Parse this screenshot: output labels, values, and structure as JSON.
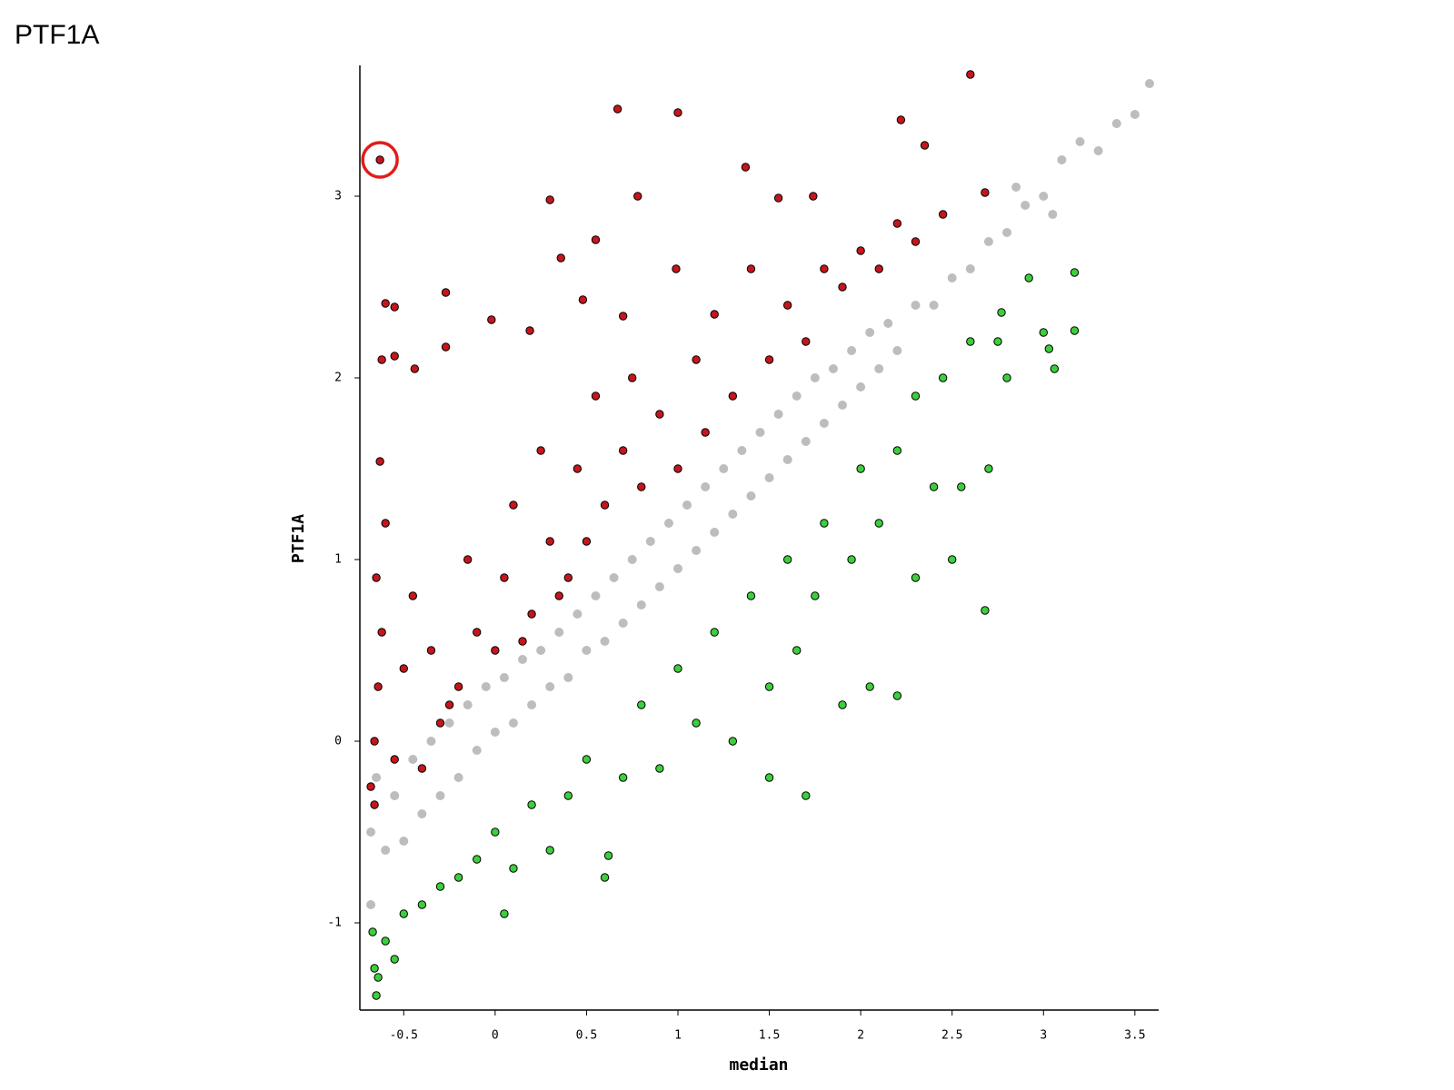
{
  "chart_data": {
    "type": "scatter",
    "title": "PTF1A",
    "xlabel": "median",
    "ylabel": "PTF1A",
    "xlim": [
      -0.74,
      3.63
    ],
    "ylim": [
      -1.48,
      3.72
    ],
    "xticks": [
      -0.5,
      0,
      0.5,
      1,
      1.5,
      2,
      2.5,
      3,
      3.5
    ],
    "yticks": [
      -1,
      0,
      1,
      2,
      3
    ],
    "series": [
      {
        "color": "#bdbdbd",
        "x": [
          -0.68,
          -0.68,
          -0.65,
          -0.6,
          -0.55,
          -0.5,
          -0.45,
          -0.4,
          -0.35,
          -0.3,
          -0.25,
          -0.2,
          -0.15,
          -0.1,
          -0.05,
          0,
          0.05,
          0.1,
          0.15,
          0.2,
          0.25,
          0.3,
          0.35,
          0.4,
          0.45,
          0.5,
          0.55,
          0.6,
          0.65,
          0.7,
          0.75,
          0.8,
          0.85,
          0.9,
          0.95,
          1.0,
          1.05,
          1.1,
          1.15,
          1.2,
          1.25,
          1.3,
          1.35,
          1.4,
          1.45,
          1.5,
          1.55,
          1.6,
          1.65,
          1.7,
          1.75,
          1.8,
          1.85,
          1.9,
          1.95,
          2.0,
          2.05,
          2.1,
          2.15,
          2.2,
          2.3,
          2.4,
          2.5,
          2.6,
          2.7,
          2.8,
          2.9,
          3.0,
          3.1,
          3.2,
          3.3,
          3.4,
          3.5,
          3.58,
          2.85,
          3.05
        ],
        "values": [
          -0.9,
          -0.5,
          -0.2,
          -0.6,
          -0.3,
          -0.55,
          -0.1,
          -0.4,
          0.0,
          -0.3,
          0.1,
          -0.2,
          0.2,
          -0.05,
          0.3,
          0.05,
          0.35,
          0.1,
          0.45,
          0.2,
          0.5,
          0.3,
          0.6,
          0.35,
          0.7,
          0.5,
          0.8,
          0.55,
          0.9,
          0.65,
          1.0,
          0.75,
          1.1,
          0.85,
          1.2,
          0.95,
          1.3,
          1.05,
          1.4,
          1.15,
          1.5,
          1.25,
          1.6,
          1.35,
          1.7,
          1.45,
          1.8,
          1.55,
          1.9,
          1.65,
          2.0,
          1.75,
          2.05,
          1.85,
          2.15,
          1.95,
          2.25,
          2.05,
          2.3,
          2.15,
          2.4,
          2.4,
          2.55,
          2.6,
          2.75,
          2.8,
          2.95,
          3.0,
          3.2,
          3.3,
          3.25,
          3.4,
          3.45,
          3.62,
          3.05,
          2.9
        ]
      },
      {
        "color": "#c4161c",
        "x": [
          -0.63,
          0.67,
          1.0,
          2.6,
          2.22,
          2.35,
          1.37,
          0.3,
          0.78,
          1.55,
          1.74,
          0.55,
          0.36,
          0.99,
          -0.6,
          -0.55,
          -0.27,
          0.48,
          0.7,
          -0.02,
          0.19,
          -0.62,
          -0.44,
          -0.55,
          -0.27,
          -0.63,
          -0.6,
          -0.65,
          -0.62,
          -0.64,
          -0.66,
          -0.68,
          -0.66,
          -0.55,
          -0.5,
          -0.45,
          -0.35,
          -0.3,
          -0.2,
          -0.1,
          -0.15,
          0,
          0.05,
          0.1,
          0.2,
          0.25,
          0.3,
          0.4,
          0.45,
          0.5,
          0.55,
          0.6,
          0.7,
          0.75,
          0.8,
          0.9,
          1.0,
          1.1,
          1.15,
          1.2,
          1.3,
          1.4,
          1.5,
          1.6,
          1.7,
          1.8,
          1.9,
          2.0,
          2.1,
          2.2,
          2.3,
          2.45,
          2.68,
          -0.4,
          -0.25,
          0.15,
          0.35
        ],
        "values": [
          3.2,
          3.48,
          3.46,
          3.67,
          3.42,
          3.28,
          3.16,
          2.98,
          3.0,
          2.99,
          3.0,
          2.76,
          2.66,
          2.6,
          2.41,
          2.39,
          2.47,
          2.43,
          2.34,
          2.32,
          2.26,
          2.1,
          2.05,
          2.12,
          2.17,
          1.54,
          1.2,
          0.9,
          0.6,
          0.3,
          0.0,
          -0.25,
          -0.35,
          -0.1,
          0.4,
          0.8,
          0.5,
          0.1,
          0.3,
          0.6,
          1.0,
          0.5,
          0.9,
          1.3,
          0.7,
          1.6,
          1.1,
          0.9,
          1.5,
          1.1,
          1.9,
          1.3,
          1.6,
          2.0,
          1.4,
          1.8,
          1.5,
          2.1,
          1.7,
          2.35,
          1.9,
          2.6,
          2.1,
          2.4,
          2.2,
          2.6,
          2.5,
          2.7,
          2.6,
          2.85,
          2.75,
          2.9,
          3.02,
          -0.15,
          0.2,
          0.55,
          0.8
        ]
      },
      {
        "color": "#3ccf3c",
        "x": [
          -0.67,
          -0.66,
          -0.65,
          -0.64,
          -0.6,
          -0.55,
          -0.5,
          -0.4,
          -0.3,
          -0.2,
          -0.1,
          0,
          0.05,
          0.1,
          0.2,
          0.3,
          0.4,
          0.5,
          0.6,
          0.62,
          0.7,
          0.8,
          0.9,
          1.0,
          1.1,
          1.2,
          1.3,
          1.4,
          1.5,
          1.5,
          1.6,
          1.65,
          1.7,
          1.75,
          1.8,
          1.9,
          1.95,
          2.0,
          2.05,
          2.1,
          2.2,
          2.2,
          2.3,
          2.3,
          2.4,
          2.45,
          2.5,
          2.55,
          2.6,
          2.68,
          2.7,
          2.75,
          2.8,
          2.92,
          3.0,
          3.06,
          3.17,
          3.17,
          3.03,
          2.77
        ],
        "values": [
          -1.05,
          -1.25,
          -1.4,
          -1.3,
          -1.1,
          -1.2,
          -0.95,
          -0.9,
          -0.8,
          -0.75,
          -0.65,
          -0.5,
          -0.95,
          -0.7,
          -0.35,
          -0.6,
          -0.3,
          -0.1,
          -0.75,
          -0.63,
          -0.2,
          0.2,
          -0.15,
          0.4,
          0.1,
          0.6,
          0.0,
          0.8,
          -0.2,
          0.3,
          1.0,
          0.5,
          -0.3,
          0.8,
          1.2,
          0.2,
          1.0,
          1.5,
          0.3,
          1.2,
          1.6,
          0.25,
          1.9,
          0.9,
          1.4,
          2.0,
          1.0,
          1.4,
          2.2,
          0.72,
          1.5,
          2.2,
          2.0,
          2.55,
          2.25,
          2.05,
          2.58,
          2.26,
          2.16,
          2.36
        ]
      }
    ]
  }
}
